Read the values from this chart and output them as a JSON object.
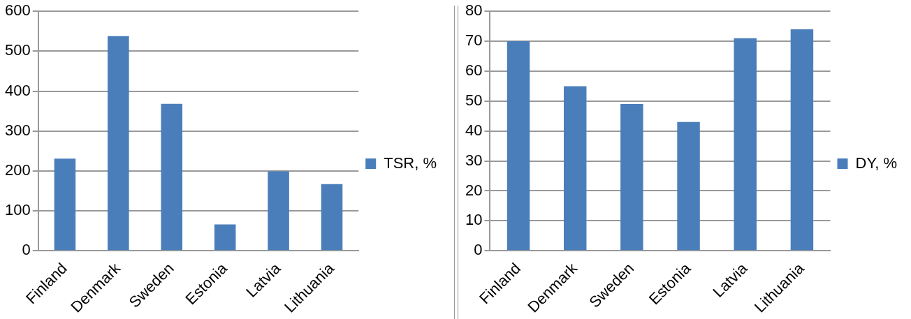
{
  "chart_data": [
    {
      "type": "bar",
      "categories": [
        "Finland",
        "Denmark",
        "Sweden",
        "Estonia",
        "Latvia",
        "Lithuania"
      ],
      "series": [
        {
          "name": "TSR, %",
          "color": "#4a7ebb",
          "values": [
            231,
            538,
            368,
            66,
            199,
            167
          ]
        }
      ],
      "ylim": [
        0,
        600
      ],
      "yticks": [
        0,
        100,
        200,
        300,
        400,
        500,
        600
      ],
      "grid": "y",
      "legend": "right"
    },
    {
      "type": "bar",
      "categories": [
        "Finland",
        "Denmark",
        "Sweden",
        "Estonia",
        "Latvia",
        "Lithuania"
      ],
      "series": [
        {
          "name": "DY, %",
          "color": "#4a7ebb",
          "values": [
            70,
            55,
            49,
            43,
            71,
            74
          ]
        }
      ],
      "ylim": [
        0,
        80
      ],
      "yticks": [
        0,
        10,
        20,
        30,
        40,
        50,
        60,
        70,
        80
      ],
      "grid": "y",
      "legend": "right"
    }
  ]
}
